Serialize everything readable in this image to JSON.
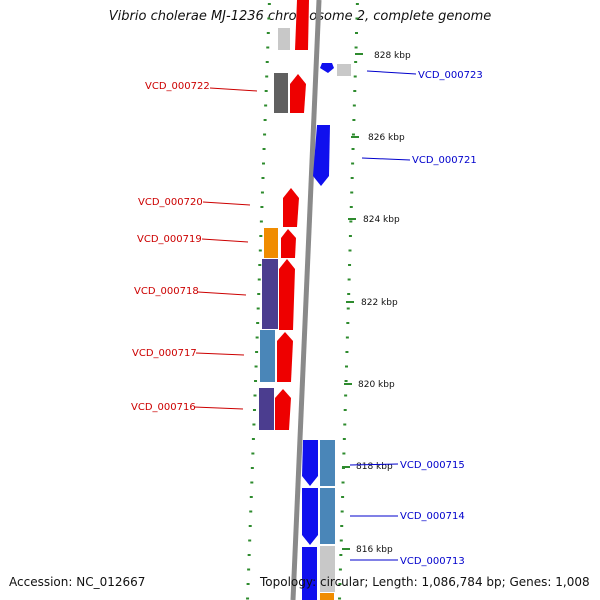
{
  "title": "Vibrio cholerae MJ-1236 chromosome 2, complete genome",
  "footer": {
    "accession": "Accession: NC_012667",
    "info": "Topology: circular; Length: 1,086,784 bp; Genes: 1,008"
  },
  "colors": {
    "backbone": "#888888",
    "tick": "#2e8b2e",
    "forward_gene": "#ee0000",
    "reverse_gene": "#1010ee",
    "forward_label": "#cc0000",
    "reverse_label": "#0000cc",
    "cog_dark_gray": "#606060",
    "cog_light_gray": "#c8c8c8",
    "cog_orange": "#f08c00",
    "cog_purple": "#4b3d8f",
    "cog_steel_blue": "#4a86b8"
  },
  "kbp_ticks": [
    "816 kbp",
    "818 kbp",
    "820 kbp",
    "822 kbp",
    "824 kbp",
    "826 kbp",
    "828 kbp"
  ],
  "gene_labels": [
    {
      "text": "VCD_000722",
      "strand": "forward"
    },
    {
      "text": "VCD_000720",
      "strand": "forward"
    },
    {
      "text": "VCD_000719",
      "strand": "forward"
    },
    {
      "text": "VCD_000718",
      "strand": "forward"
    },
    {
      "text": "VCD_000717",
      "strand": "forward"
    },
    {
      "text": "VCD_000716",
      "strand": "forward"
    },
    {
      "text": "VCD_000723",
      "strand": "reverse"
    },
    {
      "text": "VCD_000721",
      "strand": "reverse"
    },
    {
      "text": "VCD_000715",
      "strand": "reverse"
    },
    {
      "text": "VCD_000714",
      "strand": "reverse"
    },
    {
      "text": "VCD_000713",
      "strand": "reverse"
    }
  ]
}
